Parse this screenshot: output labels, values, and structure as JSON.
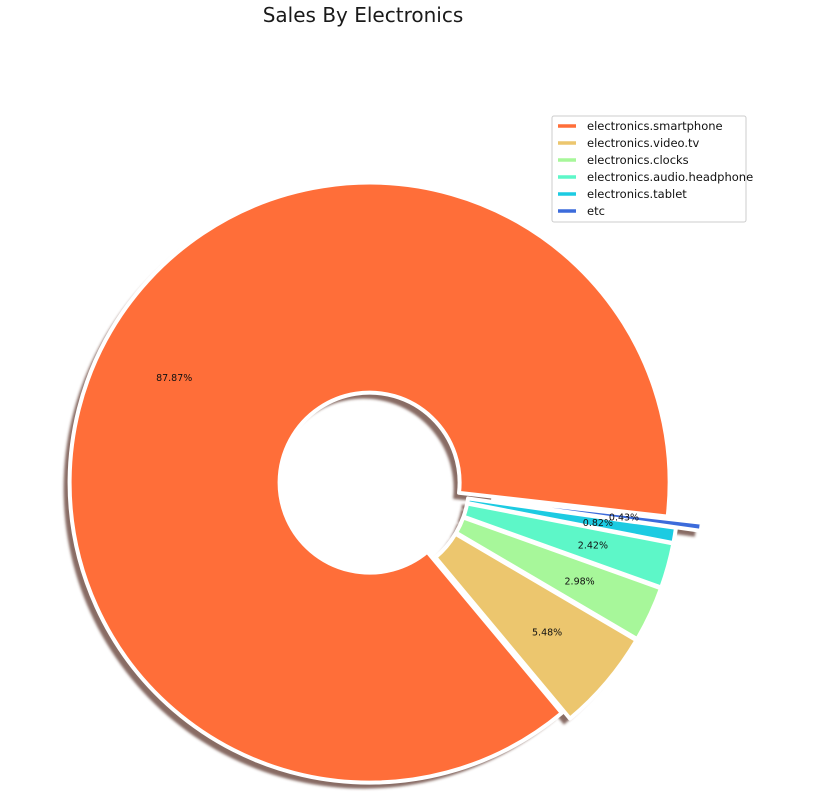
{
  "chart_data": {
    "type": "pie",
    "title": "Sales By Electronics",
    "donut": true,
    "shadow": true,
    "legend_position": "top-right",
    "slices": [
      {
        "label": "electronics.smartphone",
        "value": 87.87,
        "value_label": "87.87%",
        "color": "#ff6e39"
      },
      {
        "label": "electronics.video.tv",
        "value": 5.48,
        "value_label": "5.48%",
        "color": "#ecc66e"
      },
      {
        "label": "electronics.clocks",
        "value": 2.98,
        "value_label": "2.98%",
        "color": "#a7f79a"
      },
      {
        "label": "electronics.audio.headphone",
        "value": 2.42,
        "value_label": "2.42%",
        "color": "#5df7c8"
      },
      {
        "label": "electronics.tablet",
        "value": 0.82,
        "value_label": "0.82%",
        "color": "#1ccbe2"
      },
      {
        "label": "etc",
        "value": 0.43,
        "value_label": "0.43%",
        "color": "#3c6bdb"
      }
    ]
  }
}
